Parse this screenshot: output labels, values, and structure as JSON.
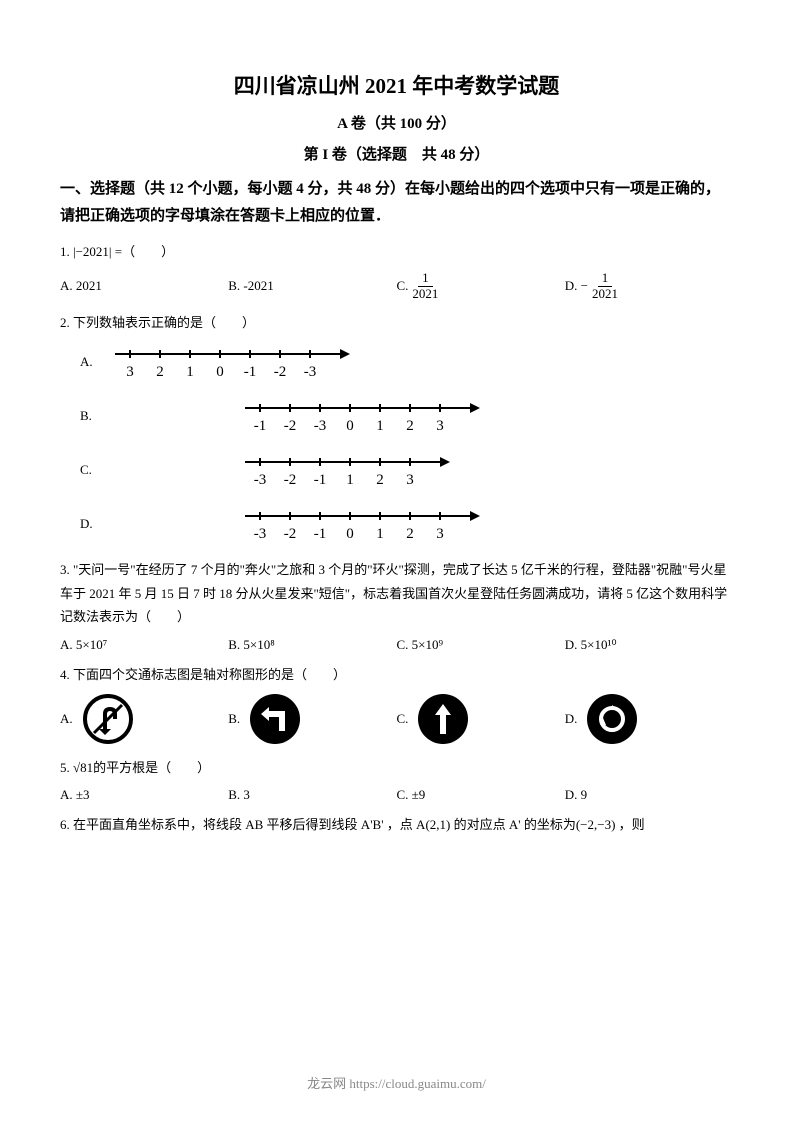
{
  "title": "四川省凉山州 2021 年中考数学试题",
  "subtitle1": "A 卷（共 100 分）",
  "subtitle2": "第 I 卷（选择题　共 48 分）",
  "sectionHeader": "一、选择题（共 12 个小题，每小题 4 分，共 48 分）在每小题给出的四个选项中只有一项是正确的，请把正确选项的字母填涂在答题卡上相应的位置．",
  "q1": {
    "text": "1.  |−2021| =（　　）",
    "optA": "A. 2021",
    "optB": "B. -2021",
    "optC_prefix": "C. ",
    "optC_num": "1",
    "optC_den": "2021",
    "optD_prefix": "D.  − ",
    "optD_num": "1",
    "optD_den": "2021"
  },
  "q2": {
    "text": "2.  下列数轴表示正确的是（　　）",
    "labelA": "A.",
    "labelB": "B.",
    "labelC": "C.",
    "labelD": "D.",
    "lineA": [
      "3",
      "2",
      "1",
      "0",
      "-1",
      "-2",
      "-3"
    ],
    "lineB": [
      "-1",
      "-2",
      "-3",
      "0",
      "1",
      "2",
      "3"
    ],
    "lineC": [
      "-3",
      "-2",
      "-1",
      "1",
      "2",
      "3"
    ],
    "lineD": [
      "-3",
      "-2",
      "-1",
      "0",
      "1",
      "2",
      "3"
    ]
  },
  "q3": {
    "text": "3. \"天问一号\"在经历了 7 个月的\"奔火\"之旅和 3 个月的\"环火\"探测，完成了长达 5 亿千米的行程，登陆器\"祝融\"号火星车于 2021 年 5 月 15 日 7 时 18 分从火星发来\"短信\"，标志着我国首次火星登陆任务圆满成功，请将 5 亿这个数用科学记数法表示为（　　）",
    "optA": "A.  5×10⁷",
    "optB": "B.  5×10⁸",
    "optC": "C.  5×10⁹",
    "optD": "D.  5×10¹⁰"
  },
  "q4": {
    "text": "4.  下面四个交通标志图是轴对称图形的是（　　）",
    "labelA": "A.",
    "labelB": "B.",
    "labelC": "C.",
    "labelD": "D."
  },
  "q5": {
    "text": "5.  √81的平方根是（　　）",
    "optA": "A.  ±3",
    "optB": "B. 3",
    "optC": "C.  ±9",
    "optD": "D. 9"
  },
  "q6": {
    "text": "6.  在平面直角坐标系中，将线段 AB 平移后得到线段 A'B' ，点 A(2,1) 的对应点 A' 的坐标为(−2,−3) ，则"
  },
  "footer": "龙云网 https://cloud.guaimu.com/",
  "colors": {
    "text": "#000000",
    "footer": "#888888",
    "bg": "#ffffff"
  },
  "numberline_style": {
    "tick_spacing": 30,
    "tick_height": 8,
    "line_width": 2,
    "font_size": 15,
    "arrow_size": 8
  }
}
